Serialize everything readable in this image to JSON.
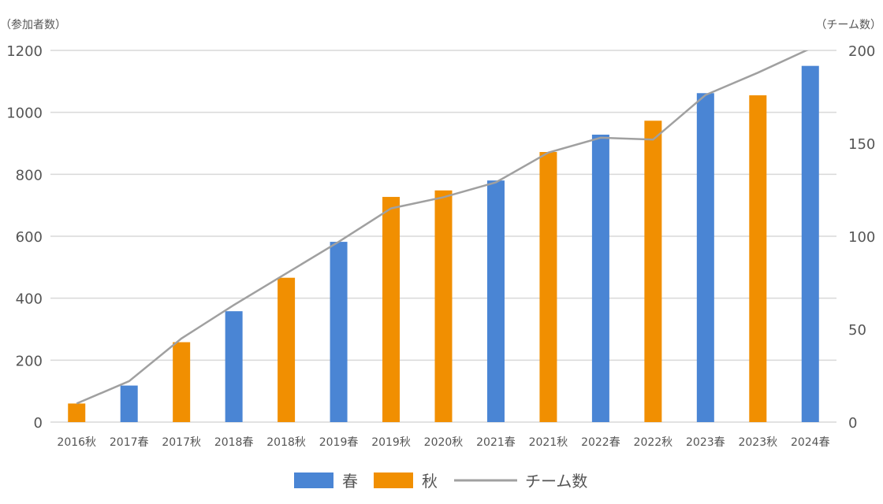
{
  "chart_data": {
    "type": "bar",
    "title": "",
    "categories": [
      "2016秋",
      "2017春",
      "2017秋",
      "2018春",
      "2018秋",
      "2019春",
      "2019秋",
      "2020秋",
      "2021春",
      "2021秋",
      "2022春",
      "2022秋",
      "2023春",
      "2023秋",
      "2024春"
    ],
    "left_axis": {
      "label": "（参加者数）",
      "ylim": [
        0,
        1200
      ],
      "ticks": [
        0,
        200,
        400,
        600,
        800,
        1000,
        1200
      ]
    },
    "right_axis": {
      "label": "（チーム数）",
      "ylim": [
        0,
        200
      ],
      "ticks": [
        0,
        50,
        100,
        150,
        200
      ]
    },
    "series": [
      {
        "name": "春",
        "type": "bar",
        "axis": "left",
        "color": "#4a85d4",
        "values": [
          null,
          118,
          null,
          358,
          null,
          582,
          null,
          null,
          780,
          null,
          928,
          null,
          1062,
          null,
          1150
        ]
      },
      {
        "name": "秋",
        "type": "bar",
        "axis": "left",
        "color": "#f18f01",
        "values": [
          60,
          null,
          258,
          null,
          466,
          null,
          727,
          748,
          null,
          872,
          null,
          973,
          null,
          1055,
          null
        ]
      },
      {
        "name": "チーム数",
        "type": "line",
        "axis": "right",
        "color": "#a0a0a0",
        "values": [
          10,
          22,
          45,
          63,
          80,
          97,
          115,
          121,
          129,
          145,
          153,
          152,
          176,
          188,
          201
        ]
      }
    ],
    "grid": true,
    "legend_position": "bottom"
  }
}
